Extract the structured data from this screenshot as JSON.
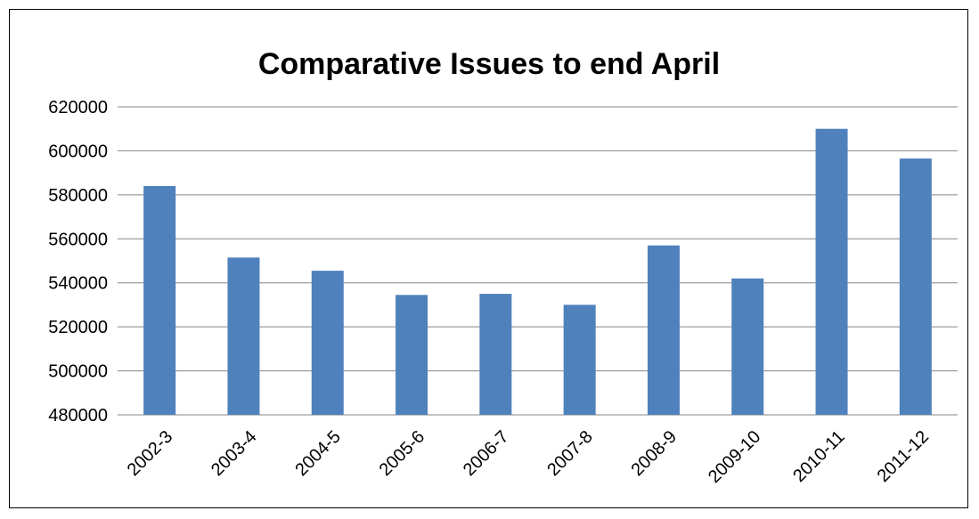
{
  "chart_data": {
    "type": "bar",
    "title": "Comparative Issues to end April",
    "xlabel": "",
    "ylabel": "",
    "categories": [
      "2002-3",
      "2003-4",
      "2004-5",
      "2005-6",
      "2006-7",
      "2007-8",
      "2008-9",
      "2009-10",
      "2010-11",
      "2011-12"
    ],
    "values": [
      584000,
      551500,
      545500,
      534500,
      535000,
      530000,
      557000,
      542000,
      610000,
      596500
    ],
    "ylim": [
      480000,
      620000
    ],
    "yticks": [
      480000,
      500000,
      520000,
      540000,
      560000,
      580000,
      600000,
      620000
    ],
    "ytick_labels": [
      "480000",
      "500000",
      "520000",
      "540000",
      "560000",
      "580000",
      "600000",
      "620000"
    ],
    "grid": true,
    "legend": "none",
    "bar_color": "#4f81bd",
    "grid_color": "#868686"
  }
}
